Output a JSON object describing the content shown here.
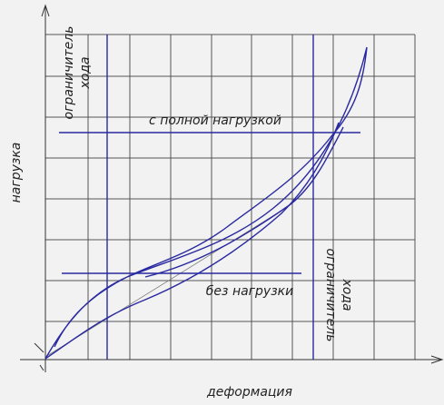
{
  "axes": {
    "y_label": "нагрузка",
    "x_label": "деформация"
  },
  "labels": {
    "full_load": "с полной нагрузкой",
    "no_load": "без нагрузки"
  },
  "limiters": [
    {
      "lines": [
        "ограничитель",
        "хода"
      ]
    },
    {
      "lines": [
        "ограничитель",
        "хода"
      ]
    }
  ]
}
